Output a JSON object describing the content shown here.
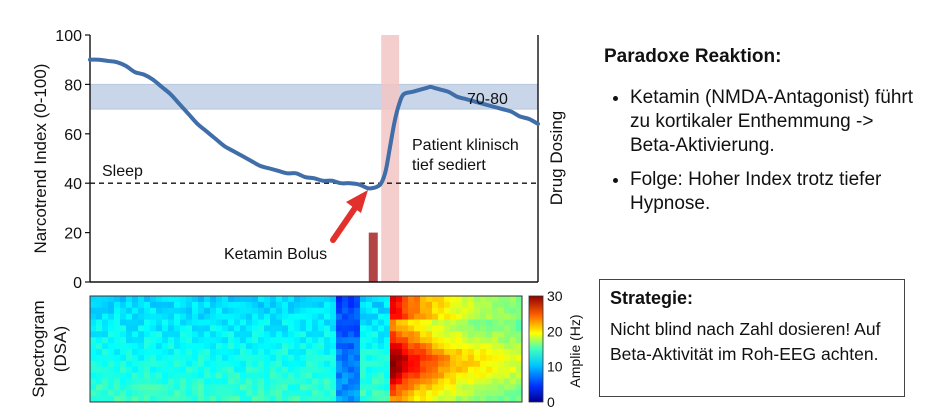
{
  "chart_data": [
    {
      "type": "line",
      "title": "",
      "xlabel": "",
      "ylabel": "Narcotrend Index (0-100)",
      "y2label": "Drug Dosing",
      "ylim": [
        0,
        100
      ],
      "yticks": [
        0,
        20,
        40,
        60,
        80,
        100
      ],
      "xlim": [
        0,
        100
      ],
      "grid": false,
      "series": [
        {
          "x": [
            0,
            2,
            4,
            6,
            8,
            10,
            12,
            14,
            16,
            18,
            20,
            22,
            24,
            26,
            28,
            30,
            32,
            34,
            36,
            38,
            40,
            42,
            44,
            46,
            48,
            50,
            52,
            54,
            56,
            58,
            60,
            62,
            63,
            64,
            65,
            66,
            67,
            68,
            69,
            70,
            72,
            74,
            75,
            76,
            77,
            78,
            80,
            82,
            84,
            86,
            88,
            90,
            92,
            94,
            96,
            98,
            100
          ],
          "y": [
            90,
            90,
            89.5,
            89,
            87.5,
            85,
            84,
            82,
            79,
            76,
            72,
            68,
            64,
            61,
            58,
            55,
            53,
            51,
            49,
            47,
            46,
            45,
            44,
            44,
            42.5,
            42,
            41,
            41,
            40,
            40,
            39.5,
            38,
            38,
            38.5,
            40,
            45,
            55,
            65,
            72,
            76,
            77,
            78,
            78.5,
            79,
            78.5,
            78,
            77,
            75,
            74,
            73,
            72,
            71,
            70,
            69,
            67,
            66,
            64
          ]
        }
      ],
      "bands": [
        {
          "from": 70,
          "to": 80,
          "label": "70-80"
        }
      ],
      "reference_lines": [
        {
          "y": 40,
          "label": "Sleep",
          "style": "dashed"
        }
      ],
      "drug_dose_bar": {
        "x": 62,
        "value": 20
      },
      "highlight_region": {
        "x_from": 65,
        "x_to": 69
      },
      "annotations": [
        {
          "text": "Ketamin Bolus"
        },
        {
          "text": "Patient klinisch tief sediert"
        }
      ]
    },
    {
      "type": "heatmap",
      "ylabel": "Spectrogram (DSA)",
      "colorbar_label": "Amplie (Hz)",
      "colorbar_ticks": [
        0,
        10,
        20,
        30
      ],
      "colorbar_range": [
        0,
        30
      ],
      "colormap": "jet"
    }
  ],
  "text": {
    "sleep_label": "Sleep",
    "band_label": "70-80",
    "bolus_label": "Ketamin Bolus",
    "sedated_line1": "Patient klinisch",
    "sedated_line2": "tief sediert",
    "ylabel": "Narcotrend Index (0-100)",
    "y2label": "Drug Dosing",
    "spectro_label_line1": "Spectrogram",
    "spectro_label_line2": "(DSA)",
    "colorbar_label": "Amplie (Hz)"
  },
  "notes": {
    "title": "Paradoxe Reaktion:",
    "bullets": [
      "Ketamin (NMDA-Antagonist) führt zu kortikaler Enthemmung -> Beta-Aktivierung.",
      "Folge: Hoher Index trotz tiefer Hypnose."
    ]
  },
  "strategy": {
    "title": "Strategie:",
    "text": "Nicht blind nach Zahl dosieren! Auf Beta-Aktivität im Roh-EEG achten."
  },
  "colors": {
    "line": "#3f6ea8",
    "band": "#c9d6ea",
    "highlight": "#f2c6c4",
    "bar": "#b24446",
    "arrow": "#e2302c"
  }
}
